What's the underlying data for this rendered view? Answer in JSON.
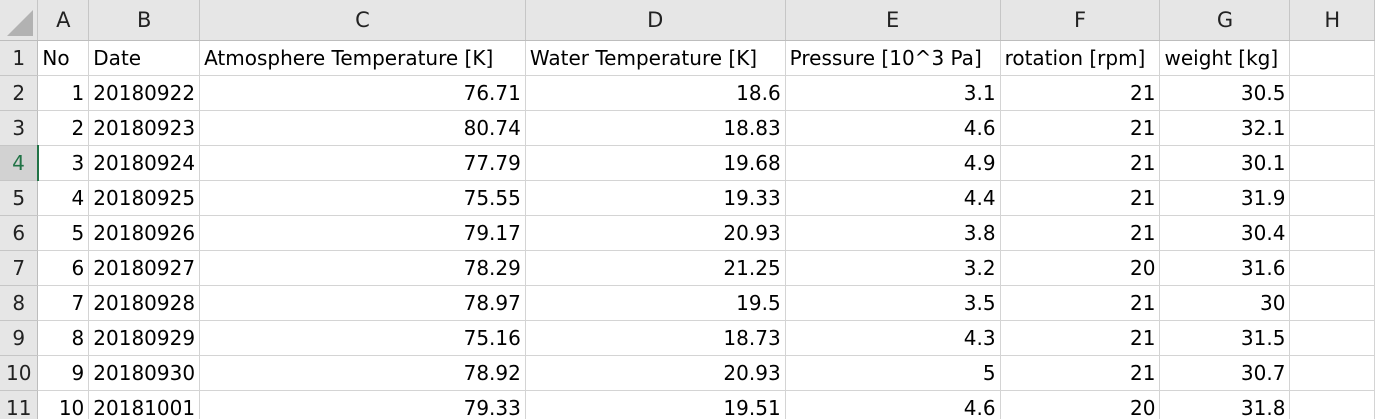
{
  "columns": [
    "A",
    "B",
    "C",
    "D",
    "E",
    "F",
    "G",
    "H"
  ],
  "row_numbers": [
    "1",
    "2",
    "3",
    "4",
    "5",
    "6",
    "7",
    "8",
    "9",
    "10",
    "11"
  ],
  "active_row": "4",
  "header_row": {
    "no": "No",
    "date": "Date",
    "atm_temp": "Atmosphere Temperature [K]",
    "water_temp": "Water Temperature [K]",
    "pressure": "Pressure [10^3 Pa]",
    "rotation": "rotation [rpm]",
    "weight": "weight [kg]",
    "h": ""
  },
  "rows": [
    {
      "no": "1",
      "date": "20180922",
      "atm_temp": "76.71",
      "water_temp": "18.6",
      "pressure": "3.1",
      "rotation": "21",
      "weight": "30.5"
    },
    {
      "no": "2",
      "date": "20180923",
      "atm_temp": "80.74",
      "water_temp": "18.83",
      "pressure": "4.6",
      "rotation": "21",
      "weight": "32.1"
    },
    {
      "no": "3",
      "date": "20180924",
      "atm_temp": "77.79",
      "water_temp": "19.68",
      "pressure": "4.9",
      "rotation": "21",
      "weight": "30.1"
    },
    {
      "no": "4",
      "date": "20180925",
      "atm_temp": "75.55",
      "water_temp": "19.33",
      "pressure": "4.4",
      "rotation": "21",
      "weight": "31.9"
    },
    {
      "no": "5",
      "date": "20180926",
      "atm_temp": "79.17",
      "water_temp": "20.93",
      "pressure": "3.8",
      "rotation": "21",
      "weight": "30.4"
    },
    {
      "no": "6",
      "date": "20180927",
      "atm_temp": "78.29",
      "water_temp": "21.25",
      "pressure": "3.2",
      "rotation": "20",
      "weight": "31.6"
    },
    {
      "no": "7",
      "date": "20180928",
      "atm_temp": "78.97",
      "water_temp": "19.5",
      "pressure": "3.5",
      "rotation": "21",
      "weight": "30"
    },
    {
      "no": "8",
      "date": "20180929",
      "atm_temp": "75.16",
      "water_temp": "18.73",
      "pressure": "4.3",
      "rotation": "21",
      "weight": "31.5"
    },
    {
      "no": "9",
      "date": "20180930",
      "atm_temp": "78.92",
      "water_temp": "20.93",
      "pressure": "5",
      "rotation": "21",
      "weight": "30.7"
    },
    {
      "no": "10",
      "date": "20181001",
      "atm_temp": "79.33",
      "water_temp": "19.51",
      "pressure": "4.6",
      "rotation": "20",
      "weight": "31.8"
    }
  ],
  "colors": {
    "header_bg": "#e6e6e6",
    "active_accent": "#217346",
    "grid": "#d4d4d4"
  },
  "icons": {
    "select_all": "select-all-triangle-icon"
  }
}
